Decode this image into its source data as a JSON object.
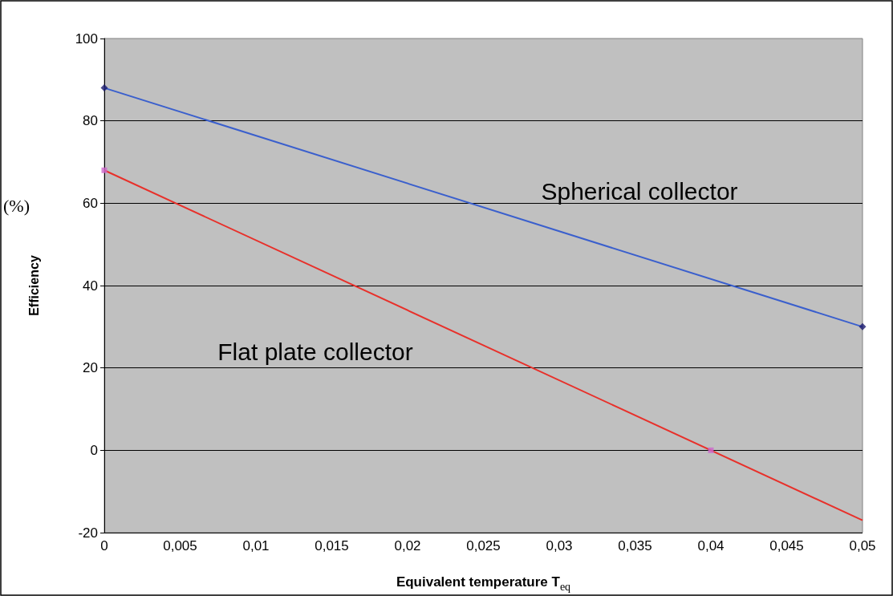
{
  "chart_data": {
    "type": "line",
    "xlabel": "Equivalent temperature T$_{eq}$",
    "ylabel": "Efficiency",
    "xlim": [
      0,
      0.05
    ],
    "xticks": [
      {
        "value": 0,
        "label": "0"
      },
      {
        "value": 0.005,
        "label": "0,005"
      },
      {
        "value": 0.01,
        "label": "0,01"
      },
      {
        "value": 0.015,
        "label": "0,015"
      },
      {
        "value": 0.02,
        "label": "0,02"
      },
      {
        "value": 0.025,
        "label": "0,025"
      },
      {
        "value": 0.03,
        "label": "0,03"
      },
      {
        "value": 0.035,
        "label": "0,035"
      },
      {
        "value": 0.04,
        "label": "0,04"
      },
      {
        "value": 0.045,
        "label": "0,045"
      },
      {
        "value": 0.05,
        "label": "0,05"
      }
    ],
    "ylim": [
      -20,
      100
    ],
    "yticks": [
      -20,
      0,
      20,
      40,
      60,
      80,
      100
    ],
    "grid": "y",
    "series": [
      {
        "color": "#3a5fcd",
        "x": [
          0,
          0.05
        ],
        "values": [
          88,
          30
        ],
        "marker": "none"
      },
      {
        "type": "scatter",
        "color": "#1a1a6e",
        "x": [
          0,
          0.05
        ],
        "values": [
          88,
          30
        ],
        "marker": "diamond"
      },
      {
        "color": "#e8302a",
        "x": [
          0,
          0.05
        ],
        "values": [
          68,
          -17
        ],
        "marker": "none"
      },
      {
        "type": "scatter",
        "color": "#cc66cc",
        "x": [
          0,
          0.04
        ],
        "values": [
          68,
          0
        ],
        "marker": "square"
      }
    ],
    "annotations": [
      "Spherical collector",
      "Flat plate collector",
      "(%)"
    ]
  }
}
